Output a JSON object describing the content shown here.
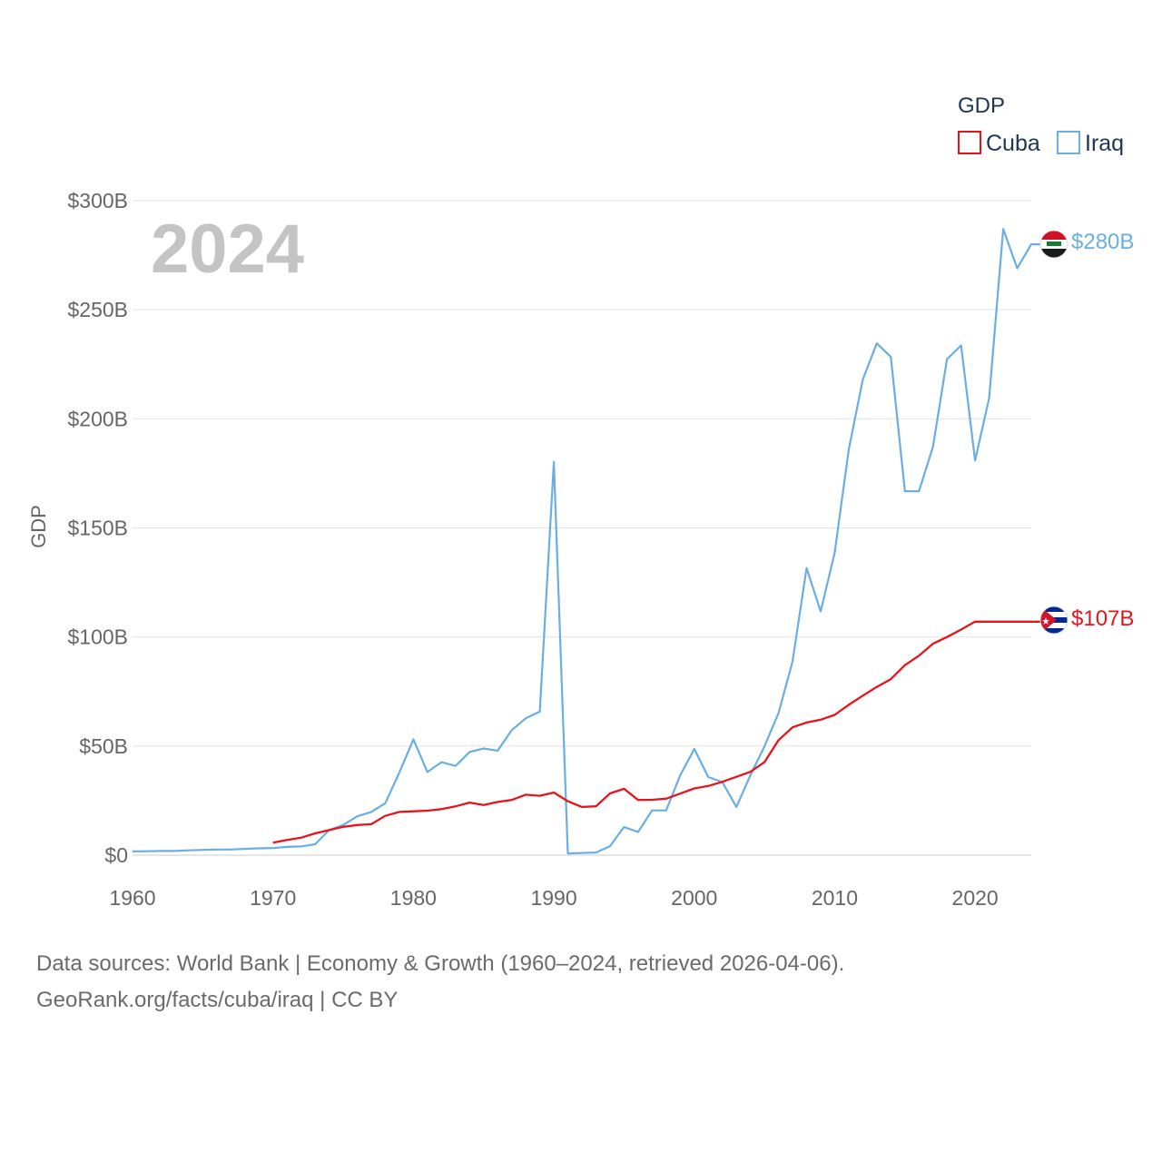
{
  "chart_data": {
    "type": "line",
    "title": "",
    "year_label": "2024",
    "xlabel": "",
    "ylabel": "GDP",
    "xlim": [
      1960,
      2024
    ],
    "ylim": [
      0,
      300
    ],
    "x_ticks": [
      1960,
      1970,
      1980,
      1990,
      2000,
      2010,
      2020
    ],
    "y_ticks": [
      0,
      50,
      100,
      150,
      200,
      250,
      300
    ],
    "y_tick_labels": [
      "$0",
      "$50B",
      "$100B",
      "$150B",
      "$200B",
      "$250B",
      "$300B"
    ],
    "x_tick_labels": [
      "1960",
      "1970",
      "1980",
      "1990",
      "2000",
      "2010",
      "2020"
    ],
    "legend": {
      "title": "GDP",
      "position": "top-right"
    },
    "units": "USD billions",
    "series": [
      {
        "name": "Cuba",
        "color": "#e8131b",
        "end_label": "$107B",
        "flag": "cuba-flag",
        "x": [
          1970,
          1971,
          1972,
          1973,
          1974,
          1975,
          1976,
          1977,
          1978,
          1979,
          1980,
          1981,
          1982,
          1983,
          1984,
          1985,
          1986,
          1987,
          1988,
          1989,
          1990,
          1991,
          1992,
          1993,
          1994,
          1995,
          1996,
          1997,
          1998,
          1999,
          2000,
          2001,
          2002,
          2003,
          2004,
          2005,
          2006,
          2007,
          2008,
          2009,
          2010,
          2011,
          2012,
          2013,
          2014,
          2015,
          2016,
          2017,
          2018,
          2019,
          2020,
          2021,
          2022,
          2023,
          2024
        ],
        "values": [
          5.7,
          7,
          8,
          10,
          11.5,
          13,
          13.8,
          14.2,
          18,
          19.8,
          20.1,
          20.4,
          21.1,
          22.4,
          24.1,
          23,
          24.4,
          25.3,
          27.7,
          27.2,
          28.7,
          24.7,
          22.1,
          22.4,
          28.3,
          30.4,
          25.3,
          25.4,
          25.9,
          28.2,
          30.6,
          31.7,
          33.6,
          35.9,
          38.2,
          42.6,
          52.7,
          58.6,
          60.8,
          62.1,
          64.3,
          68.9,
          73.1,
          77.1,
          80.7,
          87.1,
          91.4,
          96.9,
          100,
          103.4,
          107,
          107,
          107,
          107,
          107
        ]
      },
      {
        "name": "Iraq",
        "color": "#6aaee3",
        "end_label": "$280B",
        "flag": "iraq-flag",
        "x": [
          1960,
          1961,
          1962,
          1963,
          1964,
          1965,
          1966,
          1967,
          1968,
          1969,
          1970,
          1971,
          1972,
          1973,
          1974,
          1975,
          1976,
          1977,
          1978,
          1979,
          1980,
          1981,
          1982,
          1983,
          1984,
          1985,
          1986,
          1987,
          1988,
          1989,
          1990,
          1991,
          1992,
          1993,
          1994,
          1995,
          1996,
          1997,
          1998,
          1999,
          2000,
          2001,
          2002,
          2003,
          2004,
          2005,
          2006,
          2007,
          2008,
          2009,
          2010,
          2011,
          2012,
          2013,
          2014,
          2015,
          2016,
          2017,
          2018,
          2019,
          2020,
          2021,
          2022,
          2023,
          2024
        ],
        "values": [
          1.7,
          1.8,
          1.9,
          1.9,
          2.2,
          2.4,
          2.6,
          2.6,
          2.9,
          3.1,
          3.3,
          3.8,
          4,
          5,
          11.5,
          13.8,
          17.8,
          19.8,
          23.8,
          37.9,
          53.1,
          38.1,
          42.6,
          40.9,
          47.3,
          48.9,
          47.9,
          57.3,
          62.7,
          65.8,
          180.3,
          0.8,
          1,
          1.2,
          4.1,
          12.9,
          10.6,
          20.5,
          20.5,
          36.6,
          48.7,
          35.8,
          33.5,
          22.1,
          36.6,
          49.9,
          65.1,
          88.8,
          131.6,
          111.7,
          138.5,
          185.8,
          218,
          234.6,
          228.4,
          166.8,
          166.8,
          187.2,
          227.4,
          233.6,
          180.9,
          209.5,
          287,
          269,
          280
        ]
      }
    ]
  },
  "footer": {
    "line1": "Data sources: World Bank | Economy & Growth (1960–2024, retrieved 2026-04-06).",
    "line2": "GeoRank.org/facts/cuba/iraq | CC BY"
  }
}
